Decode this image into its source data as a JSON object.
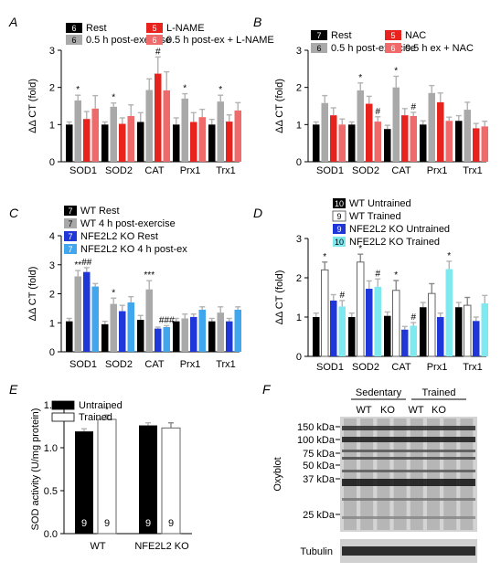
{
  "panel_letters": {
    "a": "A",
    "b": "B",
    "c": "C",
    "d": "D",
    "e": "E",
    "f": "F"
  },
  "colors": {
    "black": "#000000",
    "gray": "#a9a9a9",
    "red": "#e8231e",
    "pink": "#ef6a6a",
    "blue_dark": "#1f37d9",
    "blue_light": "#40a6ee",
    "white": "#ffffff",
    "cyan": "#7ee9ef",
    "error": "#b3b3b3"
  },
  "chart_data": [
    {
      "id": "A",
      "type": "bar",
      "ylabel": "ΔΔ CT (fold)",
      "ylim": [
        0,
        3
      ],
      "yticks": [
        0,
        1,
        2,
        3
      ],
      "categories": [
        "SOD1",
        "SOD2",
        "CAT",
        "Prx1",
        "Trx1"
      ],
      "legend": [
        {
          "badge": "6",
          "label": "Rest",
          "color": "black"
        },
        {
          "badge": "6",
          "label": "0.5 h post-exercise",
          "color": "gray"
        },
        {
          "badge": "5",
          "label": "L-NAME",
          "color": "red"
        },
        {
          "badge": "6",
          "label": "0.5 h post-ex + L-NAME",
          "color": "pink"
        }
      ],
      "series": [
        {
          "color": "black",
          "values": [
            1.0,
            1.0,
            1.07,
            1.0,
            1.0
          ],
          "err": [
            0.07,
            0.07,
            0.25,
            0.18,
            0.14
          ]
        },
        {
          "color": "gray",
          "values": [
            1.65,
            1.48,
            1.93,
            1.7,
            1.62
          ],
          "err": [
            0.14,
            0.1,
            0.3,
            0.13,
            0.17
          ]
        },
        {
          "color": "red",
          "values": [
            1.15,
            1.02,
            2.37,
            1.07,
            1.08
          ],
          "err": [
            0.2,
            0.16,
            0.45,
            0.25,
            0.18
          ]
        },
        {
          "color": "pink",
          "values": [
            1.43,
            1.23,
            1.92,
            1.2,
            1.38
          ],
          "err": [
            0.35,
            0.3,
            0.5,
            0.21,
            0.21
          ]
        }
      ],
      "annotations": [
        {
          "cat": 0,
          "series": 1,
          "text": "*"
        },
        {
          "cat": 1,
          "series": 1,
          "text": "*"
        },
        {
          "cat": 2,
          "series": 2,
          "text": "#"
        },
        {
          "cat": 3,
          "series": 1,
          "text": "*"
        },
        {
          "cat": 4,
          "series": 1,
          "text": "*"
        }
      ]
    },
    {
      "id": "B",
      "type": "bar",
      "ylabel": "ΔΔ CT (fold)",
      "ylim": [
        0,
        3
      ],
      "yticks": [
        0,
        1,
        2,
        3
      ],
      "categories": [
        "SOD1",
        "SOD2",
        "CAT",
        "Prx1",
        "Trx1"
      ],
      "legend": [
        {
          "badge": "7",
          "label": "Rest",
          "color": "black"
        },
        {
          "badge": "6",
          "label": "0.5 h post-exercise",
          "color": "gray"
        },
        {
          "badge": "5",
          "label": "NAC",
          "color": "red"
        },
        {
          "badge": "6",
          "label": "0.5 h ex + NAC",
          "color": "pink"
        }
      ],
      "series": [
        {
          "color": "black",
          "values": [
            1.0,
            1.0,
            0.88,
            1.0,
            1.1
          ],
          "err": [
            0.07,
            0.07,
            0.1,
            0.1,
            0.14
          ]
        },
        {
          "color": "gray",
          "values": [
            1.58,
            1.92,
            2.0,
            1.85,
            1.4
          ],
          "err": [
            0.2,
            0.2,
            0.3,
            0.2,
            0.2
          ]
        },
        {
          "color": "red",
          "values": [
            1.25,
            1.56,
            1.25,
            1.6,
            0.9
          ],
          "err": [
            0.2,
            0.2,
            0.18,
            0.25,
            0.13
          ]
        },
        {
          "color": "pink",
          "values": [
            1.0,
            1.08,
            1.23,
            1.1,
            0.95
          ],
          "err": [
            0.15,
            0.13,
            0.1,
            0.1,
            0.14
          ]
        }
      ],
      "annotations": [
        {
          "cat": 1,
          "series": 1,
          "text": "*"
        },
        {
          "cat": 1,
          "series": 3,
          "text": "#"
        },
        {
          "cat": 2,
          "series": 1,
          "text": "*"
        },
        {
          "cat": 2,
          "series": 3,
          "text": "#"
        }
      ]
    },
    {
      "id": "C",
      "type": "bar",
      "ylabel": "ΔΔ CT (fold)",
      "ylim": [
        0,
        4
      ],
      "yticks": [
        0,
        1,
        2,
        3,
        4
      ],
      "categories": [
        "SOD1",
        "SOD2",
        "CAT",
        "Prx1",
        "Trx1"
      ],
      "legend": [
        {
          "badge": "7",
          "label": "WT Rest",
          "color": "black"
        },
        {
          "badge": "7",
          "label": "WT 4 h post-exercise",
          "color": "gray"
        },
        {
          "badge": "7",
          "label": "NFE2L2 KO Rest",
          "color": "blue_dark"
        },
        {
          "badge": "7",
          "label": "NFE2L2 KO 4 h post-ex",
          "color": "blue_light"
        }
      ],
      "series": [
        {
          "color": "black",
          "values": [
            1.05,
            0.95,
            1.1,
            1.05,
            1.05
          ],
          "err": [
            0.1,
            0.1,
            0.15,
            0.1,
            0.1
          ]
        },
        {
          "color": "gray",
          "values": [
            2.6,
            1.65,
            2.15,
            1.15,
            1.35
          ],
          "err": [
            0.2,
            0.2,
            0.3,
            0.15,
            0.2
          ]
        },
        {
          "color": "blue_dark",
          "values": [
            2.75,
            1.4,
            0.8,
            1.2,
            1.05
          ],
          "err": [
            0.15,
            0.2,
            0.05,
            0.1,
            0.1
          ]
        },
        {
          "color": "blue_light",
          "values": [
            2.25,
            1.7,
            0.85,
            1.45,
            1.45
          ],
          "err": [
            0.1,
            0.2,
            0.05,
            0.1,
            0.1
          ]
        }
      ],
      "annotations": [
        {
          "cat": 0,
          "series": 1,
          "text": "**"
        },
        {
          "cat": 0,
          "series": 2,
          "text": "##"
        },
        {
          "cat": 1,
          "series": 1,
          "text": "*"
        },
        {
          "cat": 2,
          "series": 1,
          "text": "***"
        },
        {
          "cat": 2,
          "series": 3,
          "text": "###"
        }
      ]
    },
    {
      "id": "D",
      "type": "bar",
      "ylabel": "ΔΔ CT (fold)",
      "ylim": [
        0,
        3
      ],
      "yticks": [
        0,
        1,
        2,
        3
      ],
      "categories": [
        "SOD1",
        "SOD2",
        "CAT",
        "Prx1",
        "Trx1"
      ],
      "legend": [
        {
          "badge": "10",
          "label": "WT Untrained",
          "color": "black"
        },
        {
          "badge": "9",
          "label": "WT Trained",
          "color": "white"
        },
        {
          "badge": "9",
          "label": "NFE2L2 KO Untrained",
          "color": "blue_dark"
        },
        {
          "badge": "10",
          "label": "NFE2L2 KO Trained",
          "color": "cyan"
        }
      ],
      "series": [
        {
          "color": "black",
          "values": [
            1.0,
            1.0,
            1.03,
            1.25,
            1.25
          ],
          "err": [
            0.1,
            0.1,
            0.1,
            0.12,
            0.12
          ]
        },
        {
          "color": "white",
          "values": [
            2.2,
            2.4,
            1.68,
            1.6,
            1.3
          ],
          "err": [
            0.2,
            0.2,
            0.25,
            0.25,
            0.2
          ]
        },
        {
          "color": "blue_dark",
          "values": [
            1.42,
            1.72,
            0.68,
            1.0,
            0.9
          ],
          "err": [
            0.15,
            0.2,
            0.08,
            0.1,
            0.1
          ]
        },
        {
          "color": "cyan",
          "values": [
            1.27,
            1.77,
            0.78,
            2.22,
            1.35
          ],
          "err": [
            0.15,
            0.2,
            0.08,
            0.2,
            0.2
          ]
        }
      ],
      "annotations": [
        {
          "cat": 0,
          "series": 1,
          "text": "*"
        },
        {
          "cat": 0,
          "series": 3,
          "text": "#"
        },
        {
          "cat": 1,
          "series": 1,
          "text": "*"
        },
        {
          "cat": 1,
          "series": 3,
          "text": "#"
        },
        {
          "cat": 2,
          "series": 1,
          "text": "*"
        },
        {
          "cat": 2,
          "series": 3,
          "text": "#"
        },
        {
          "cat": 3,
          "series": 3,
          "text": "*"
        }
      ]
    },
    {
      "id": "E",
      "type": "bar",
      "ylabel": "SOD activity (U/mg protein)",
      "ylim": [
        0,
        1.5
      ],
      "yticks": [
        0.0,
        0.5,
        1.0,
        1.5
      ],
      "ytick_labels": [
        "0.0",
        "0.5",
        "1.0",
        "1.5"
      ],
      "categories": [
        "WT",
        "NFE2L2 KO"
      ],
      "legend": [
        {
          "label": "Untrained",
          "color": "black"
        },
        {
          "label": "Trained",
          "color": "white"
        }
      ],
      "series": [
        {
          "color": "black",
          "values": [
            1.19,
            1.26
          ],
          "err": [
            0.03,
            0.03
          ],
          "n": [
            "9",
            "9"
          ]
        },
        {
          "color": "white",
          "values": [
            1.33,
            1.23
          ],
          "err": [
            0.05,
            0.06
          ],
          "n": [
            "9",
            "9"
          ]
        }
      ],
      "annotations": [
        {
          "cat": 0,
          "series": 1,
          "text": "*"
        }
      ]
    }
  ],
  "blot": {
    "header_groups": [
      "Sedentary",
      "Trained"
    ],
    "header_lanes": [
      "WT",
      "KO",
      "WT",
      "KO"
    ],
    "main_label": "Oxyblot",
    "markers": [
      "150 kDa",
      "100 kDa",
      "75 kDa",
      "50 kDa",
      "37 kDa",
      "25 kDa"
    ],
    "loading_label": "Tubulin"
  }
}
